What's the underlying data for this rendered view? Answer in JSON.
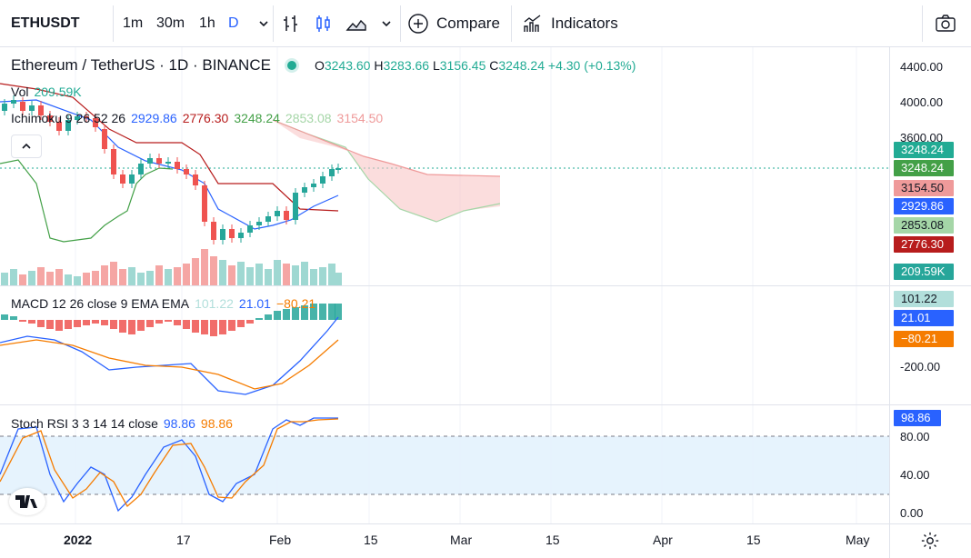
{
  "toolbar": {
    "symbol": "ETHUSDT",
    "intervals": [
      "1m",
      "30m",
      "1h",
      "D"
    ],
    "active_interval": "D",
    "compare_label": "Compare",
    "indicators_label": "Indicators"
  },
  "legend": {
    "title": "Ethereum / TetherUS · 1D · BINANCE",
    "o_label": "O",
    "o": "3243.60",
    "h_label": "H",
    "h": "3283.66",
    "l_label": "L",
    "l": "3156.45",
    "c_label": "C",
    "c": "3248.24",
    "change": "+4.30 (+0.13%)",
    "vol_label": "Vol",
    "vol": "209.59K",
    "ichimoku_label": "Ichimoku 9 26 52 26",
    "ichimoku_values": [
      "2929.86",
      "2776.30",
      "3248.24",
      "2853.08",
      "3154.50"
    ],
    "macd_label": "MACD 12 26 close 9 EMA EMA",
    "macd_values": [
      "101.22",
      "21.01",
      "−80.21"
    ],
    "stoch_label": "Stoch RSI 3 3 14 14 close",
    "stoch_values": [
      "98.86",
      "98.86"
    ]
  },
  "price_scale": [
    "4400.00",
    "4000.00",
    "3600.00"
  ],
  "price_tags": [
    {
      "text": "3248.24",
      "color": "#22ab94"
    },
    {
      "text": "3248.24",
      "color": "#43a047"
    },
    {
      "text": "3154.50",
      "color": "#ef9a9a"
    },
    {
      "text": "2929.86",
      "color": "#2962ff"
    },
    {
      "text": "2853.08",
      "color": "#a5d6a7"
    },
    {
      "text": "2776.30",
      "color": "#b71c1c"
    },
    {
      "text": "209.59K",
      "color": "#26a69a"
    }
  ],
  "macd_scale": [
    "-200.00"
  ],
  "macd_tags": [
    {
      "text": "101.22",
      "color": "#b2dfdb"
    },
    {
      "text": "21.01",
      "color": "#2962ff"
    },
    {
      "text": "−80.21",
      "color": "#f57c00"
    }
  ],
  "stoch_scale": [
    "80.00",
    "40.00",
    "0.00"
  ],
  "stoch_tag": {
    "text": "98.86",
    "color": "#2962ff"
  },
  "time_axis": [
    "2022",
    "17",
    "Feb",
    "15",
    "Mar",
    "15",
    "Apr",
    "15",
    "May"
  ],
  "colors": {
    "up": "#26a69a",
    "down": "#ef5350",
    "accent": "#2962ff"
  },
  "icons": [
    "bars-style-icon",
    "candles-style-icon",
    "area-style-icon",
    "chevron-down-icon",
    "plus-circle-icon",
    "indicators-icon",
    "camera-icon",
    "chevron-up-icon",
    "tradingview-logo-icon",
    "gear-icon"
  ]
}
